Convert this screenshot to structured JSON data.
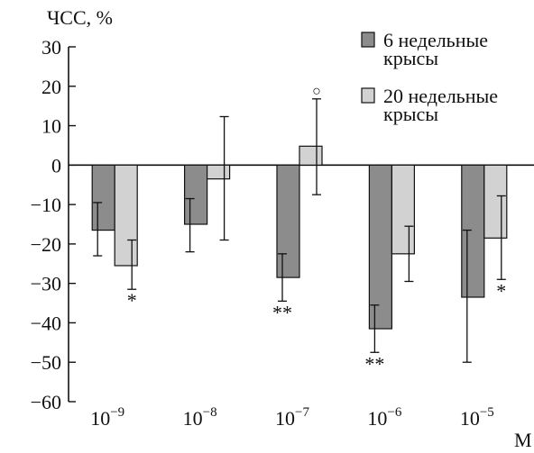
{
  "chart_data": {
    "type": "bar",
    "ylabel": "ЧСС, %",
    "xlabel": "М",
    "ylim": [
      -60,
      30
    ],
    "yticks": [
      30,
      20,
      10,
      0,
      -10,
      -20,
      -30,
      -40,
      -50,
      -60
    ],
    "categories": [
      {
        "base": "10",
        "exp": "−9"
      },
      {
        "base": "10",
        "exp": "−8"
      },
      {
        "base": "10",
        "exp": "−7"
      },
      {
        "base": "10",
        "exp": "−6"
      },
      {
        "base": "10",
        "exp": "−5"
      }
    ],
    "series": [
      {
        "name_lines": [
          "6 недельные",
          "крысы"
        ],
        "color": "#8c8c8c",
        "values": [
          -16.5,
          -15,
          -28.5,
          -41.5,
          -33.5
        ],
        "err_low": [
          -23,
          -22,
          -34.5,
          -47.5,
          -50
        ],
        "err_high": [
          -9.5,
          -8.5,
          -22.5,
          -35.5,
          -16.5
        ],
        "marks": [
          "",
          "",
          "**",
          "**",
          ""
        ]
      },
      {
        "name_lines": [
          "20 недельные",
          "крысы"
        ],
        "color": "#d2d2d2",
        "values": [
          -25.5,
          -3.5,
          4.8,
          -22.5,
          -18.5
        ],
        "err_low": [
          -31.5,
          -19,
          -7.5,
          -29.5,
          -29
        ],
        "err_high": [
          -19,
          12.3,
          16.8,
          -15.5,
          -7.8
        ],
        "marks": [
          "*",
          "",
          "○",
          "",
          "*"
        ]
      }
    ],
    "legend": "top-right"
  }
}
